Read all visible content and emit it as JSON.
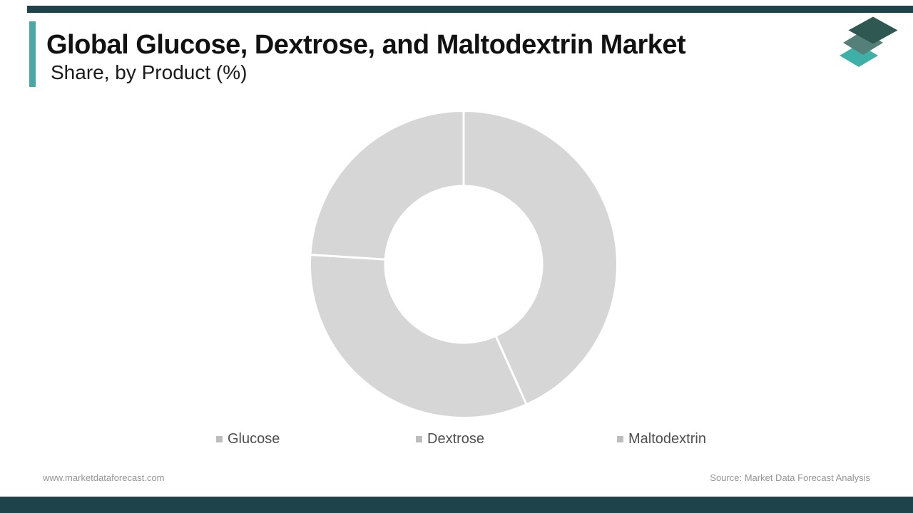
{
  "header": {
    "title": "Global Glucose, Dextrose, and Maltodextrin Market",
    "subtitle": "Share, by Product (%)"
  },
  "logo": {
    "name": "market-data-forecast-layered-diamonds-logo",
    "layer_colors": {
      "top": "#2f5852",
      "middle": "#557f79",
      "bottom": "#3fb0a7"
    }
  },
  "chart_data": {
    "type": "pie",
    "subtype": "donut",
    "title": "Global Glucose, Dextrose, and Maltodextrin Market Share, by Product (%)",
    "categories": [
      "Glucose",
      "Dextrose",
      "Maltodextrin"
    ],
    "values": [
      43.3,
      32.7,
      24.0
    ],
    "unit": "%",
    "slice_color": "#d6d6d6",
    "separator_color": "#ffffff",
    "start_angle_deg": 0,
    "direction": "clockwise",
    "inner_radius_ratio": 0.51,
    "legend_position": "bottom",
    "data_labels_visible": false
  },
  "legend": {
    "swatch_color": "#bdbdbd",
    "items": [
      {
        "label": "Glucose"
      },
      {
        "label": "Dextrose"
      },
      {
        "label": "Maltodextrin"
      }
    ]
  },
  "footer": {
    "website": "www.marketdataforecast.com",
    "source": "Source: Market Data Forecast Analysis"
  },
  "theme": {
    "accent_color": "#4aa8a4",
    "band_color": "#1f434b",
    "title_color": "#121212",
    "legend_text_color": "#4f4f4f",
    "muted_text_color": "#949494"
  }
}
